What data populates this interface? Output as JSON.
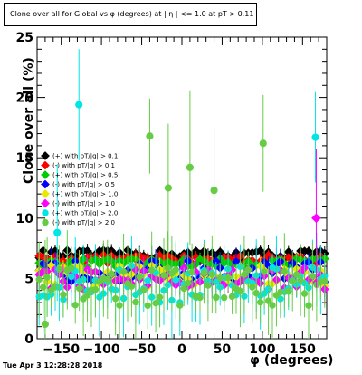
{
  "timestamp": "Tue Apr  3 12:28:28 2018",
  "chart_data": {
    "type": "scatter",
    "title": "Clone  over all for Global vs φ (degrees) at | η | <= 1.0 at pT > 0.11",
    "xlabel": "φ (degrees)",
    "ylabel": "Clone  over all (%)",
    "xlim": [
      -180,
      180
    ],
    "ylim": [
      0,
      25
    ],
    "xticks": [
      "−150",
      "−100",
      "−50",
      "0",
      "50",
      "100",
      "150"
    ],
    "xtick_values": [
      -150,
      -100,
      -50,
      0,
      50,
      100,
      150
    ],
    "yticks": [
      "0",
      "5",
      "10",
      "15",
      "20",
      "25"
    ],
    "ytick_values": [
      0,
      5,
      10,
      15,
      20,
      25
    ],
    "grid": false,
    "legend_position": "left-middle",
    "series": [
      {
        "name": "(+) with pT/|q| > 0.1",
        "color": "#000000",
        "marker": "diamond",
        "level": 7.0
      },
      {
        "name": "(-) with pT/|q| > 0.1",
        "color": "#ff0000",
        "marker": "diamond",
        "level": 6.6
      },
      {
        "name": "(+) with pT/|q| > 0.5",
        "color": "#00cc00",
        "marker": "diamond",
        "level": 6.3
      },
      {
        "name": "(-) with pT/|q| > 0.5",
        "color": "#0000ff",
        "marker": "diamond",
        "level": 5.6
      },
      {
        "name": "(+) with pT/|q| > 1.0",
        "color": "#e8e800",
        "marker": "diamond",
        "level": 5.2
      },
      {
        "name": "(-) with pT/|q| > 1.0",
        "color": "#ff00ff",
        "marker": "diamond",
        "level": 5.0
      },
      {
        "name": "(+) with pT/|q| > 2.0",
        "color": "#00e5e5",
        "marker": "circle",
        "level": 4.5
      },
      {
        "name": "(-) with pT/|q| > 2.0",
        "color": "#66cc44",
        "marker": "circle",
        "level": 4.3
      }
    ],
    "outliers": [
      {
        "series": 6,
        "x": -128,
        "y": 19.4
      },
      {
        "series": 7,
        "x": -40,
        "y": 16.8
      },
      {
        "series": 7,
        "x": -17,
        "y": 12.5
      },
      {
        "series": 7,
        "x": 10,
        "y": 14.2
      },
      {
        "series": 7,
        "x": 101,
        "y": 16.2
      },
      {
        "series": 6,
        "x": 166,
        "y": 16.7
      },
      {
        "series": 5,
        "x": 167,
        "y": 10.0
      },
      {
        "series": 7,
        "x": -170,
        "y": 1.2
      },
      {
        "series": 7,
        "x": 40,
        "y": 12.3
      },
      {
        "series": 6,
        "x": -155,
        "y": 8.8
      }
    ]
  }
}
